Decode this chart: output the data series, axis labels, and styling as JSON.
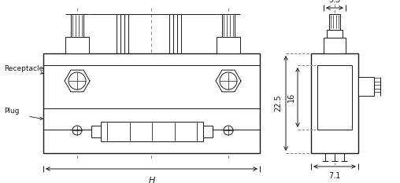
{
  "bg_color": "#ffffff",
  "line_color": "#1a1a1a",
  "fig_width": 5.08,
  "fig_height": 2.33,
  "dpi": 100,
  "annotations": {
    "receptacle_label": "Receptacle",
    "plug_label": "Plug",
    "H_label": "H",
    "dim_95": "9.5",
    "dim_225": "22.5",
    "dim_16": "16",
    "dim_71": "7.1"
  }
}
